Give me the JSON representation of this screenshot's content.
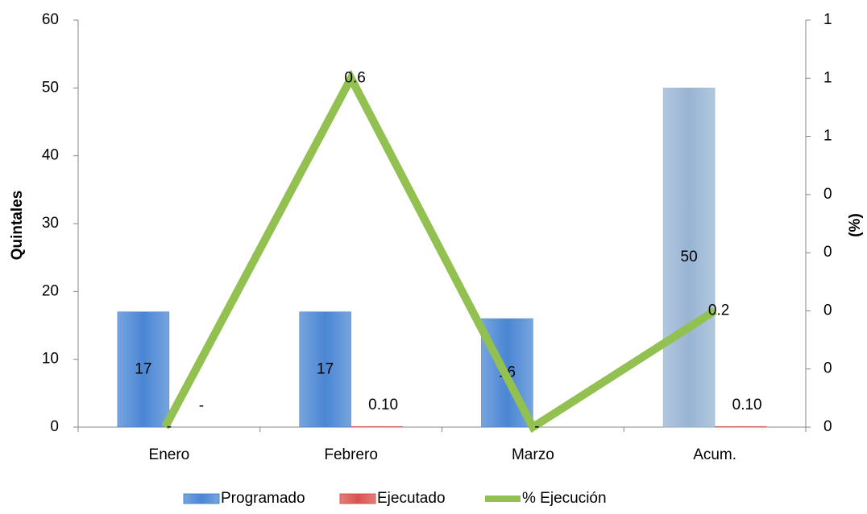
{
  "chart_data": {
    "type": "bar_line",
    "categories": [
      "Enero",
      "Febrero",
      "Marzo",
      "Acum."
    ],
    "ylabel": "Quintales",
    "y2label": "(%)",
    "ylim": [
      0,
      60
    ],
    "yticks": [
      0,
      10,
      20,
      30,
      40,
      50,
      60
    ],
    "y2lim": [
      0,
      0.7
    ],
    "y2ticks": [
      {
        "value": 0,
        "label": "0"
      },
      {
        "value": 0.1,
        "label": "0"
      },
      {
        "value": 0.2,
        "label": "0"
      },
      {
        "value": 0.3,
        "label": "0"
      },
      {
        "value": 0.4,
        "label": "0"
      },
      {
        "value": 0.5,
        "label": "1"
      },
      {
        "value": 0.6,
        "label": "1"
      },
      {
        "value": 0.7,
        "label": "1"
      }
    ],
    "legend": "bottom",
    "series": [
      {
        "name": "Programado",
        "type": "bar",
        "color": "#4a86d4",
        "colors": [
          "#4a86d4",
          "#4a86d4",
          "#4a86d4",
          "#98b4d4"
        ],
        "values": [
          17,
          17,
          16,
          50
        ]
      },
      {
        "name": "Ejecutado",
        "type": "bar",
        "color": "#d9534f",
        "values": [
          0,
          0.1,
          0,
          0.1
        ],
        "value_labels": [
          "-",
          "0.10",
          "-",
          "0.10"
        ]
      },
      {
        "name": "% Ejecución",
        "type": "line",
        "axis": "y2",
        "color": "#92c051",
        "values": [
          0,
          0.6,
          0,
          0.2
        ],
        "value_labels": [
          "-",
          "0.6",
          "-",
          "0.2"
        ]
      }
    ]
  }
}
